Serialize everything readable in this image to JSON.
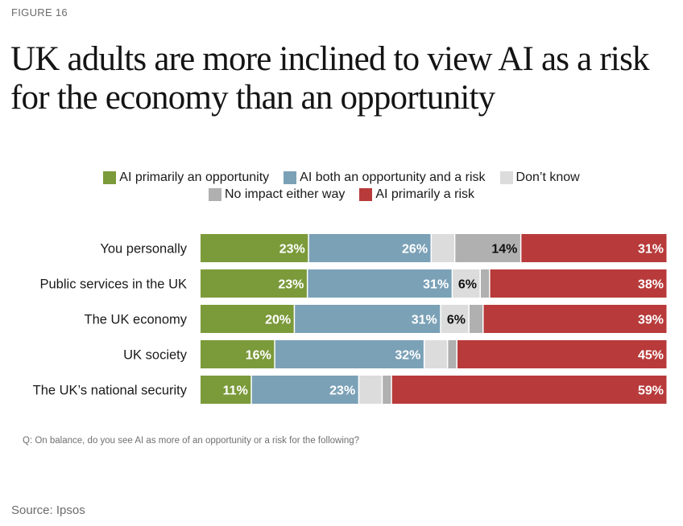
{
  "figure_label": "FIGURE 16",
  "title": "UK adults are more inclined to view AI as a risk for the economy than an opportunity",
  "question": "Q: On balance, do you see AI as more of an opportunity or a risk for the following?",
  "source": "Source: Ipsos",
  "colors": {
    "opportunity": "#7b9a3a",
    "both": "#7ba1b7",
    "dont_know": "#dcdcdc",
    "no_impact": "#b0b0b0",
    "risk": "#b83a3a"
  },
  "chart_data": {
    "type": "bar",
    "orientation": "horizontal",
    "stacked": true,
    "categories": [
      "You personally",
      "Public services in the UK",
      "The UK economy",
      "UK society",
      "The UK’s national security"
    ],
    "series": [
      {
        "key": "opportunity",
        "name": "AI primarily an opportunity",
        "values": [
          23,
          23,
          20,
          16,
          11
        ],
        "labels": [
          "23%",
          "23%",
          "20%",
          "16%",
          "11%"
        ]
      },
      {
        "key": "both",
        "name": "AI both an opportunity and a risk",
        "values": [
          26,
          31,
          31,
          32,
          23
        ],
        "labels": [
          "26%",
          "31%",
          "31%",
          "32%",
          "23%"
        ]
      },
      {
        "key": "dont_know",
        "name": "Don’t know",
        "values": [
          5,
          6,
          6,
          5,
          5
        ],
        "labels": [
          "",
          "6%",
          "6%",
          "",
          ""
        ]
      },
      {
        "key": "no_impact",
        "name": "No impact either way",
        "values": [
          14,
          2,
          3,
          2,
          2
        ],
        "labels": [
          "14%",
          "",
          "",
          "",
          ""
        ]
      },
      {
        "key": "risk",
        "name": "AI primarily a risk",
        "values": [
          31,
          38,
          39,
          45,
          59
        ],
        "labels": [
          "31%",
          "38%",
          "39%",
          "45%",
          "59%"
        ]
      }
    ],
    "legend": {
      "row1": [
        "opportunity",
        "both",
        "dont_know"
      ],
      "row2": [
        "no_impact",
        "risk"
      ]
    },
    "xlabel": "",
    "ylabel": ""
  }
}
